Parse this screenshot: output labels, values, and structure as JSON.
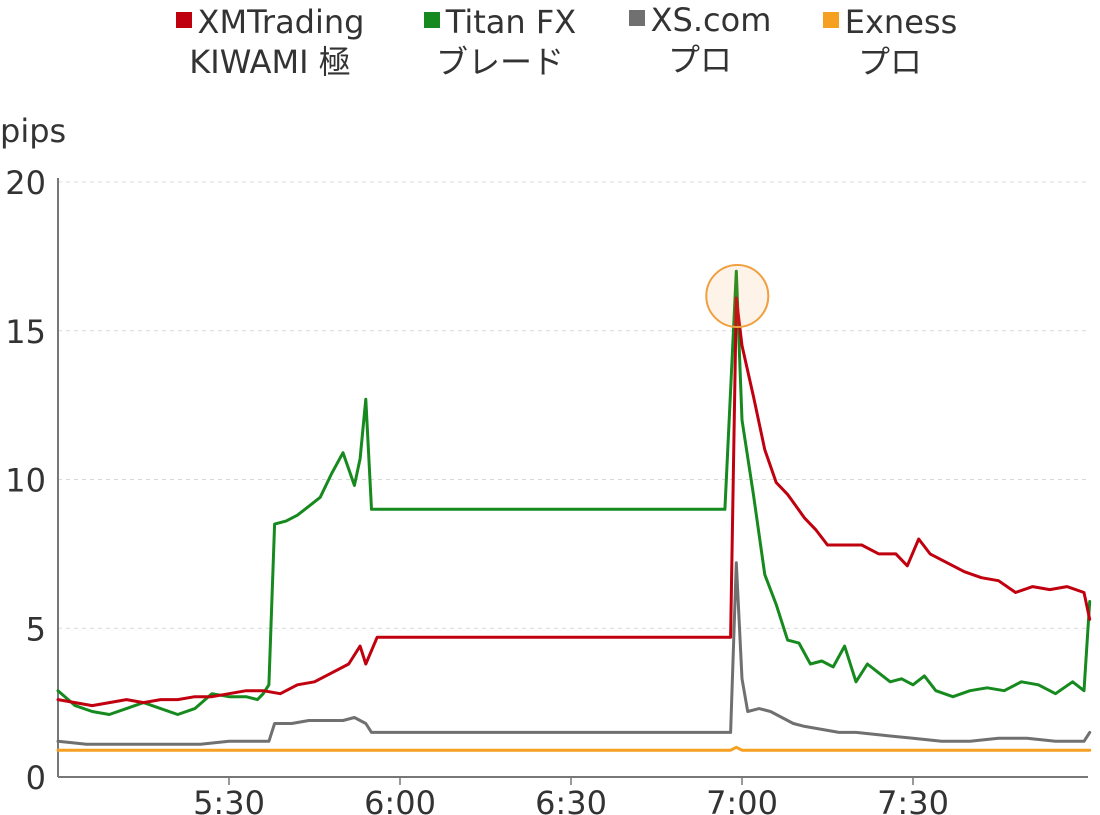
{
  "chart_data": {
    "type": "line",
    "ylabel": "pips",
    "ylim": [
      0,
      20
    ],
    "yticks": [
      "0",
      "5",
      "10",
      "15",
      "20"
    ],
    "x_range_minutes": [
      300,
      419
    ],
    "xticks": [
      {
        "label": "5:30",
        "minute": 330
      },
      {
        "label": "6:00",
        "minute": 360
      },
      {
        "label": "6:30",
        "minute": 390
      },
      {
        "label": "7:00",
        "minute": 420
      },
      {
        "label": "7:30",
        "minute": 450
      }
    ],
    "grid": "horizontal-dashed",
    "legend_position": "top",
    "highlight": {
      "minute": 419,
      "y": 16.1,
      "color": "#f0a040"
    },
    "series": [
      {
        "name_line1": "XMTrading",
        "name_line2": "KIWAMI 極",
        "color": "#c0000f",
        "points": [
          [
            300,
            2.6
          ],
          [
            303,
            2.5
          ],
          [
            306,
            2.4
          ],
          [
            309,
            2.5
          ],
          [
            312,
            2.6
          ],
          [
            315,
            2.5
          ],
          [
            318,
            2.6
          ],
          [
            321,
            2.6
          ],
          [
            324,
            2.7
          ],
          [
            327,
            2.7
          ],
          [
            330,
            2.8
          ],
          [
            333,
            2.9
          ],
          [
            336,
            2.9
          ],
          [
            339,
            2.8
          ],
          [
            342,
            3.1
          ],
          [
            345,
            3.2
          ],
          [
            348,
            3.5
          ],
          [
            351,
            3.8
          ],
          [
            353,
            4.4
          ],
          [
            354,
            3.8
          ],
          [
            356,
            4.7
          ],
          [
            360,
            4.7
          ],
          [
            370,
            4.7
          ],
          [
            380,
            4.7
          ],
          [
            390,
            4.7
          ],
          [
            400,
            4.7
          ],
          [
            410,
            4.7
          ],
          [
            418,
            4.7
          ],
          [
            419,
            16.1
          ],
          [
            420,
            14.5
          ],
          [
            422,
            12.8
          ],
          [
            424,
            11.0
          ],
          [
            426,
            9.9
          ],
          [
            428,
            9.5
          ],
          [
            431,
            8.7
          ],
          [
            433,
            8.3
          ],
          [
            435,
            7.8
          ],
          [
            438,
            7.8
          ],
          [
            441,
            7.8
          ],
          [
            444,
            7.5
          ],
          [
            447,
            7.5
          ],
          [
            449,
            7.1
          ],
          [
            451,
            8.0
          ],
          [
            453,
            7.5
          ],
          [
            456,
            7.2
          ],
          [
            459,
            6.9
          ],
          [
            462,
            6.7
          ],
          [
            465,
            6.6
          ],
          [
            468,
            6.2
          ],
          [
            471,
            6.4
          ],
          [
            474,
            6.3
          ],
          [
            477,
            6.4
          ],
          [
            480,
            6.2
          ],
          [
            481,
            5.3
          ]
        ]
      },
      {
        "name_line1": "Titan FX",
        "name_line2": "ブレード",
        "color": "#168a1e",
        "points": [
          [
            300,
            2.9
          ],
          [
            303,
            2.4
          ],
          [
            306,
            2.2
          ],
          [
            309,
            2.1
          ],
          [
            312,
            2.3
          ],
          [
            315,
            2.5
          ],
          [
            318,
            2.3
          ],
          [
            321,
            2.1
          ],
          [
            324,
            2.3
          ],
          [
            327,
            2.8
          ],
          [
            330,
            2.7
          ],
          [
            333,
            2.7
          ],
          [
            335,
            2.6
          ],
          [
            336,
            2.8
          ],
          [
            337,
            3.1
          ],
          [
            338,
            8.5
          ],
          [
            340,
            8.6
          ],
          [
            342,
            8.8
          ],
          [
            344,
            9.1
          ],
          [
            346,
            9.4
          ],
          [
            348,
            10.2
          ],
          [
            350,
            10.9
          ],
          [
            352,
            9.8
          ],
          [
            353,
            10.7
          ],
          [
            354,
            12.7
          ],
          [
            355,
            9.0
          ],
          [
            360,
            9.0
          ],
          [
            370,
            9.0
          ],
          [
            380,
            9.0
          ],
          [
            390,
            9.0
          ],
          [
            400,
            9.0
          ],
          [
            410,
            9.0
          ],
          [
            417,
            9.0
          ],
          [
            419,
            17.0
          ],
          [
            420,
            12.0
          ],
          [
            422,
            9.5
          ],
          [
            424,
            6.8
          ],
          [
            426,
            5.8
          ],
          [
            428,
            4.6
          ],
          [
            430,
            4.5
          ],
          [
            432,
            3.8
          ],
          [
            434,
            3.9
          ],
          [
            436,
            3.7
          ],
          [
            438,
            4.4
          ],
          [
            440,
            3.2
          ],
          [
            442,
            3.8
          ],
          [
            444,
            3.5
          ],
          [
            446,
            3.2
          ],
          [
            448,
            3.3
          ],
          [
            450,
            3.1
          ],
          [
            452,
            3.4
          ],
          [
            454,
            2.9
          ],
          [
            457,
            2.7
          ],
          [
            460,
            2.9
          ],
          [
            463,
            3.0
          ],
          [
            466,
            2.9
          ],
          [
            469,
            3.2
          ],
          [
            472,
            3.1
          ],
          [
            475,
            2.8
          ],
          [
            478,
            3.2
          ],
          [
            480,
            2.9
          ],
          [
            481,
            5.9
          ]
        ]
      },
      {
        "name_line1": "XS.com",
        "name_line2": "プロ",
        "color": "#707070",
        "points": [
          [
            300,
            1.2
          ],
          [
            305,
            1.1
          ],
          [
            310,
            1.1
          ],
          [
            315,
            1.1
          ],
          [
            320,
            1.1
          ],
          [
            325,
            1.1
          ],
          [
            330,
            1.2
          ],
          [
            335,
            1.2
          ],
          [
            337,
            1.2
          ],
          [
            338,
            1.8
          ],
          [
            341,
            1.8
          ],
          [
            344,
            1.9
          ],
          [
            347,
            1.9
          ],
          [
            350,
            1.9
          ],
          [
            352,
            2.0
          ],
          [
            354,
            1.8
          ],
          [
            355,
            1.5
          ],
          [
            360,
            1.5
          ],
          [
            370,
            1.5
          ],
          [
            380,
            1.5
          ],
          [
            390,
            1.5
          ],
          [
            400,
            1.5
          ],
          [
            410,
            1.5
          ],
          [
            418,
            1.5
          ],
          [
            419,
            7.2
          ],
          [
            420,
            3.3
          ],
          [
            421,
            2.2
          ],
          [
            423,
            2.3
          ],
          [
            425,
            2.2
          ],
          [
            427,
            2.0
          ],
          [
            429,
            1.8
          ],
          [
            431,
            1.7
          ],
          [
            434,
            1.6
          ],
          [
            437,
            1.5
          ],
          [
            440,
            1.5
          ],
          [
            445,
            1.4
          ],
          [
            450,
            1.3
          ],
          [
            455,
            1.2
          ],
          [
            460,
            1.2
          ],
          [
            465,
            1.3
          ],
          [
            470,
            1.3
          ],
          [
            475,
            1.2
          ],
          [
            480,
            1.2
          ],
          [
            481,
            1.5
          ]
        ]
      },
      {
        "name_line1": "Exness",
        "name_line2": "プロ",
        "color": "#f5a020",
        "points": [
          [
            300,
            0.9
          ],
          [
            320,
            0.9
          ],
          [
            340,
            0.9
          ],
          [
            360,
            0.9
          ],
          [
            380,
            0.9
          ],
          [
            400,
            0.9
          ],
          [
            418,
            0.9
          ],
          [
            419,
            1.0
          ],
          [
            420,
            0.9
          ],
          [
            440,
            0.9
          ],
          [
            460,
            0.9
          ],
          [
            481,
            0.9
          ]
        ]
      }
    ]
  }
}
